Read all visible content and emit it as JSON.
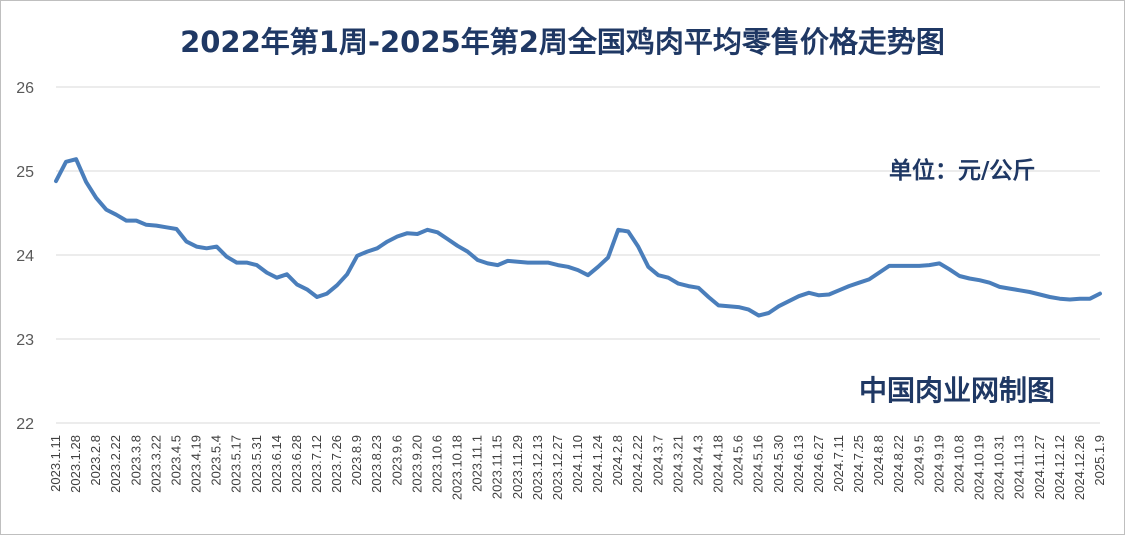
{
  "chart_data": {
    "type": "line",
    "title": "2022年第1周-2025年第2周全国鸡肉平均零售价格走势图",
    "unit_label": "单位：元/公斤",
    "source_mark": "中国肉业网制图",
    "ylim": [
      22,
      26
    ],
    "yticks": [
      22,
      23,
      24,
      25,
      26
    ],
    "grid": "horizontal",
    "x_tick_labels": [
      "2023.1.11",
      "2023.1.28",
      "2023.2.8",
      "2023.2.22",
      "2023.3.8",
      "2023.3.22",
      "2023.4.5",
      "2023.4.19",
      "2023.5.4",
      "2023.5.17",
      "2023.5.31",
      "2023.6.14",
      "2023.6.28",
      "2023.7.12",
      "2023.7.26",
      "2023.8.9",
      "2023.8.23",
      "2023.9.6",
      "2023.9.20",
      "2023.10.6",
      "2023.10.18",
      "2023.11.1",
      "2023.11.15",
      "2023.11.29",
      "2023.12.13",
      "2023.12.27",
      "2024.1.10",
      "2024.1.24",
      "2024.2.8",
      "2024.2.22",
      "2024.3.7",
      "2024.3.21",
      "2024.4.3",
      "2024.4.18",
      "2024.5.6",
      "2024.5.16",
      "2024.5.30",
      "2024.6.13",
      "2024.6.27",
      "2024.7.11",
      "2024.7.25",
      "2024.8.8",
      "2024.8.22",
      "2024.9.5",
      "2024.9.19",
      "2024.10.8",
      "2024.10.19",
      "2024.10.31",
      "2024.11.13",
      "2024.11.27",
      "2024.12.12",
      "2024.12.26",
      "2025.1.9"
    ],
    "series": [
      {
        "color": "#4a7ebb",
        "values": [
          24.88,
          25.11,
          25.14,
          24.87,
          24.68,
          24.54,
          24.48,
          24.41,
          24.41,
          24.36,
          24.35,
          24.33,
          24.31,
          24.16,
          24.1,
          24.08,
          24.1,
          23.98,
          23.91,
          23.91,
          23.88,
          23.79,
          23.73,
          23.77,
          23.65,
          23.59,
          23.5,
          23.54,
          23.64,
          23.77,
          23.99,
          24.04,
          24.08,
          24.16,
          24.22,
          24.26,
          24.25,
          24.3,
          24.27,
          24.19,
          24.11,
          24.04,
          23.94,
          23.9,
          23.88,
          23.93,
          23.92,
          23.91,
          23.91,
          23.91,
          23.88,
          23.86,
          23.82,
          23.76,
          23.86,
          23.97,
          24.3,
          24.28,
          24.1,
          23.86,
          23.76,
          23.73,
          23.66,
          23.63,
          23.61,
          23.5,
          23.4,
          23.39,
          23.38,
          23.35,
          23.28,
          23.31,
          23.39,
          23.45,
          23.51,
          23.55,
          23.52,
          23.53,
          23.58,
          23.63,
          23.67,
          23.71,
          23.79,
          23.87,
          23.87,
          23.87,
          23.87,
          23.88,
          23.9,
          23.83,
          23.75,
          23.72,
          23.7,
          23.67,
          23.62,
          23.6,
          23.58,
          23.56,
          23.53,
          23.5,
          23.48,
          23.47,
          23.48,
          23.48,
          23.54
        ]
      }
    ]
  }
}
